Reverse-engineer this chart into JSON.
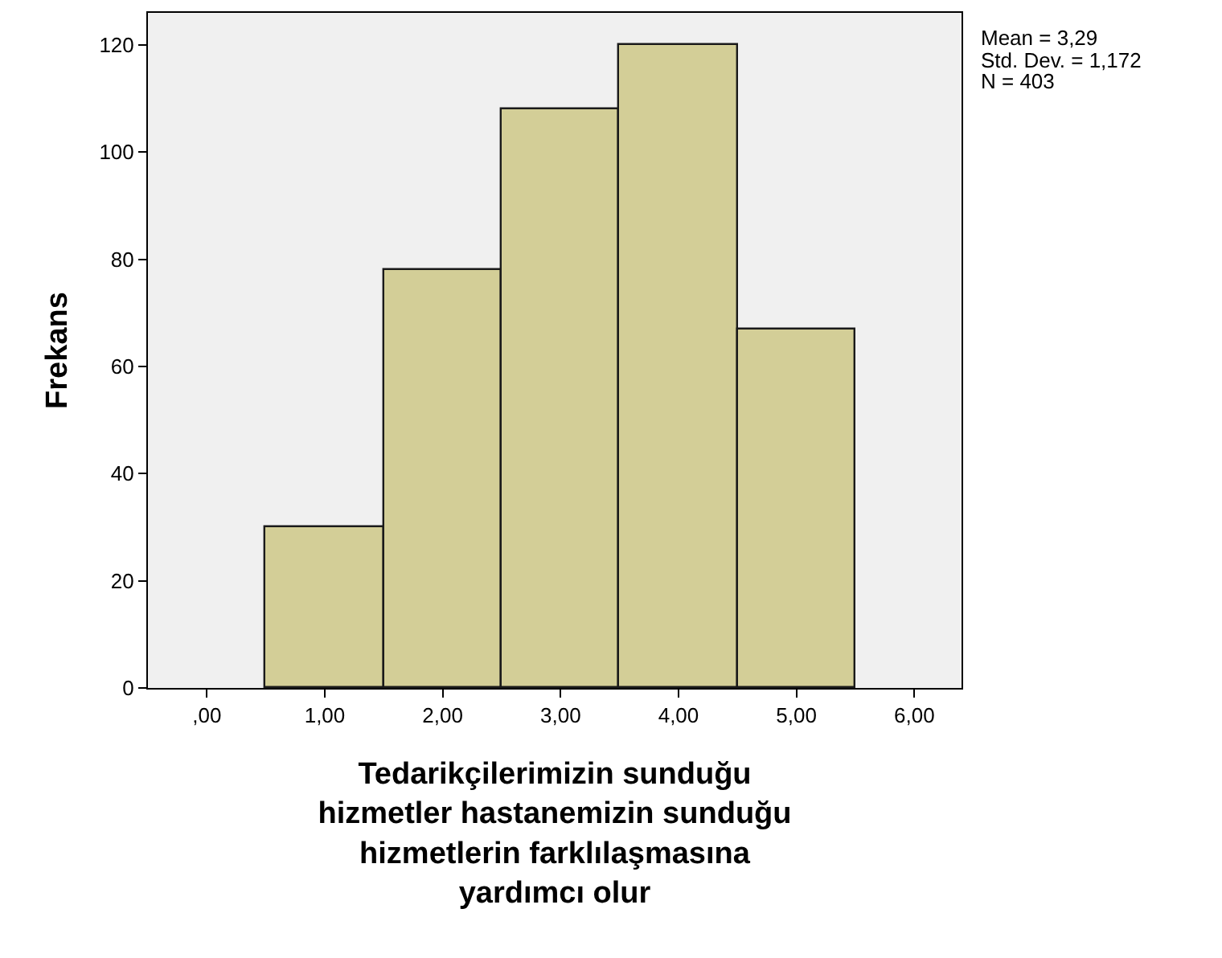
{
  "chart_data": {
    "type": "histogram",
    "xlabel": "Tedarikçilerimizin sunduğu hizmetler hastanemizin sunduğu hizmetlerin farklılaşmasına yardımcı olur",
    "ylabel": "Frekans",
    "bins": [
      0.5,
      1.5,
      2.5,
      3.5,
      4.5,
      5.5
    ],
    "values": [
      30,
      78,
      108,
      120,
      67
    ],
    "color": "#d3ce97",
    "xlim": [
      -0.5,
      6.4
    ],
    "ylim": [
      0,
      126
    ],
    "xticks": [
      {
        "value": 0,
        "label": ",00"
      },
      {
        "value": 1,
        "label": "1,00"
      },
      {
        "value": 2,
        "label": "2,00"
      },
      {
        "value": 3,
        "label": "3,00"
      },
      {
        "value": 4,
        "label": "4,00"
      },
      {
        "value": 5,
        "label": "5,00"
      },
      {
        "value": 6,
        "label": "6,00"
      }
    ],
    "yticks": [
      0,
      20,
      40,
      60,
      80,
      100,
      120
    ],
    "grid": false,
    "annotations": [
      "Mean = 3,29",
      "Std. Dev. = 1,172",
      "N = 403"
    ]
  }
}
